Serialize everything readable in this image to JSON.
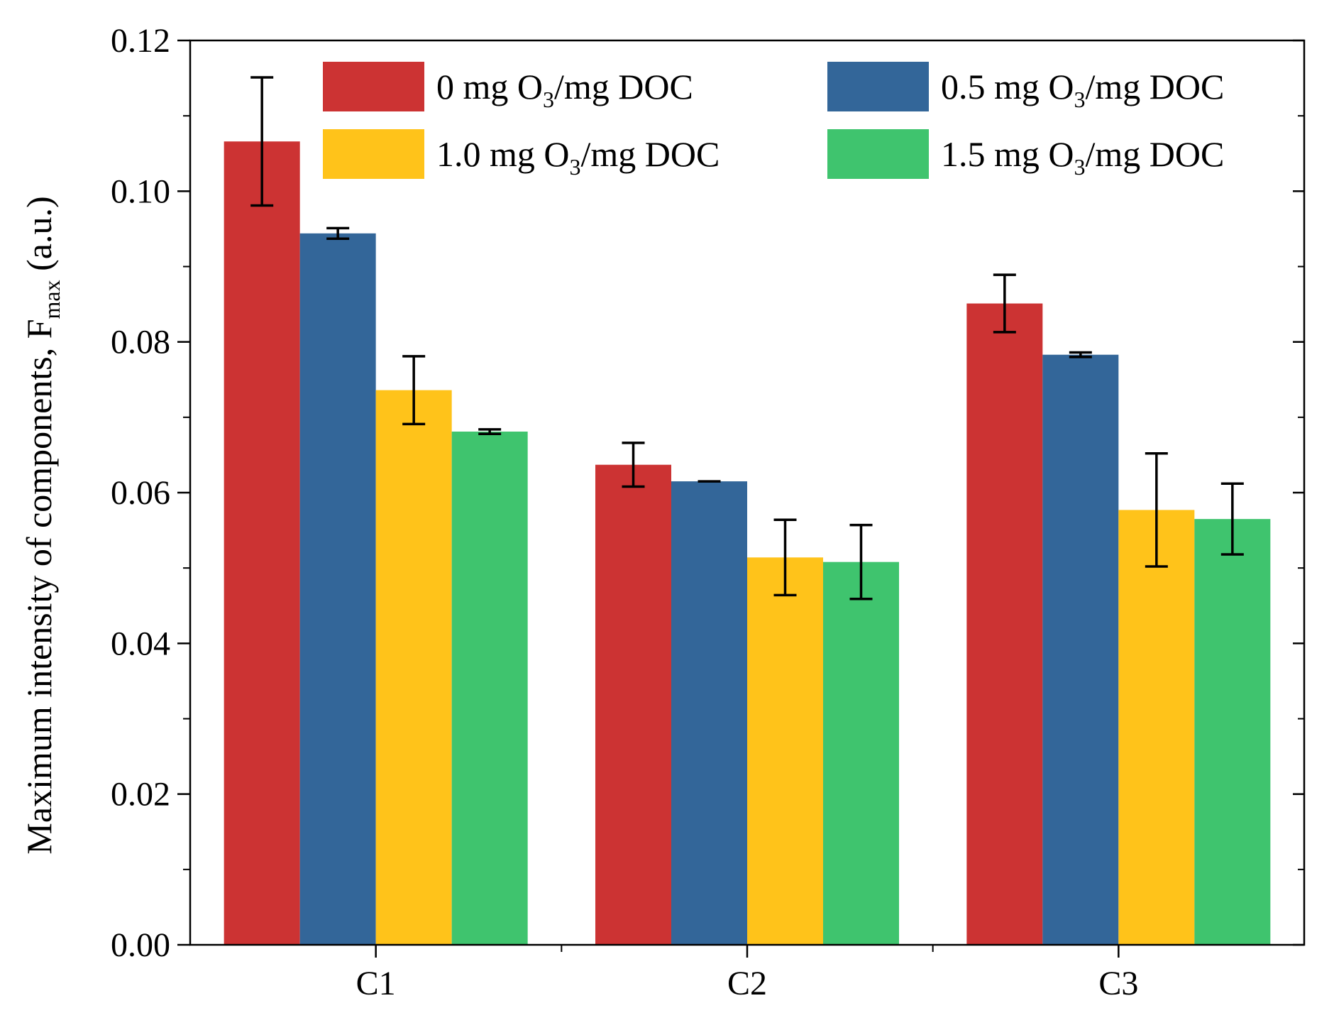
{
  "chart_data": {
    "type": "bar",
    "title": "",
    "xlabel": "",
    "ylabel": {
      "main": "Maximum intensity of components, F",
      "subscript": "max",
      "suffix": " (a.u.)"
    },
    "categories": [
      "C1",
      "C2",
      "C3"
    ],
    "ylim": [
      0,
      0.12
    ],
    "yticks": [
      "0.00",
      "0.02",
      "0.04",
      "0.06",
      "0.08",
      "0.10",
      "0.12"
    ],
    "series": [
      {
        "name": "0 mg O3/mg DOC",
        "label": {
          "pre": "0 mg O",
          "sub": "3",
          "post": "/mg DOC"
        },
        "color": "#cc3333",
        "values": [
          0.1066,
          0.0637,
          0.0851
        ],
        "errors": [
          0.0085,
          0.0029,
          0.0038
        ]
      },
      {
        "name": "0.5 mg O3/mg DOC",
        "label": {
          "pre": "0.5 mg O",
          "sub": "3",
          "post": "/mg DOC"
        },
        "color": "#336699",
        "values": [
          0.0944,
          0.0615,
          0.0783
        ],
        "errors": [
          0.0007,
          0.0,
          0.0003
        ]
      },
      {
        "name": "1.0 mg O3/mg DOC",
        "label": {
          "pre": "1.0 mg O",
          "sub": "3",
          "post": "/mg DOC"
        },
        "color": "#ffc31a",
        "values": [
          0.0736,
          0.0514,
          0.0577
        ],
        "errors": [
          0.0045,
          0.005,
          0.0075
        ]
      },
      {
        "name": "1.5 mg O3/mg DOC",
        "label": {
          "pre": "1.5 mg O",
          "sub": "3",
          "post": "/mg DOC"
        },
        "color": "#3fc46e",
        "values": [
          0.0681,
          0.0508,
          0.0565
        ],
        "errors": [
          0.0003,
          0.0049,
          0.0047
        ]
      }
    ],
    "legend_position": "top",
    "grid": false
  }
}
